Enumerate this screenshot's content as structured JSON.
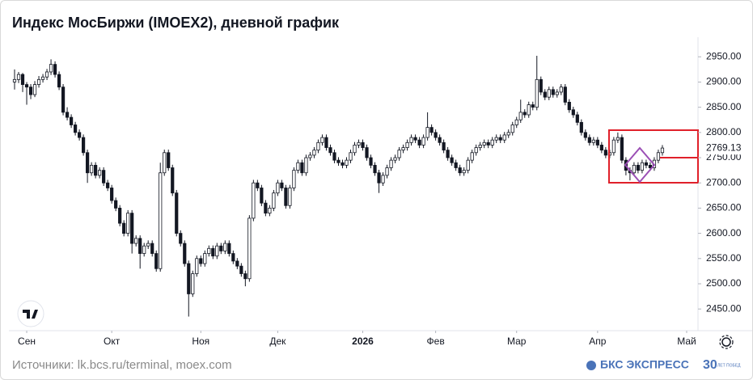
{
  "chart_data": {
    "type": "candlestick",
    "title": "Индекс МосБиржи (IMOEX2), дневной график",
    "up_color": "#ffffff",
    "down_color": "#131722",
    "outline_color": "#131722",
    "ylim": [
      2407,
      3045
    ],
    "yticks": [
      {
        "value": 2450,
        "label": "2450.00"
      },
      {
        "value": 2500,
        "label": "2500.00"
      },
      {
        "value": 2550,
        "label": "2550.00"
      },
      {
        "value": 2600,
        "label": "2600.00"
      },
      {
        "value": 2650,
        "label": "2650.00"
      },
      {
        "value": 2700,
        "label": "2700.00"
      },
      {
        "value": 2750,
        "label": "2750.00"
      },
      {
        "value": 2800,
        "label": "2800.00"
      },
      {
        "value": 2850,
        "label": "2850.00"
      },
      {
        "value": 2900,
        "label": "2900.00"
      },
      {
        "value": 2950,
        "label": "2950.00"
      }
    ],
    "xlim": [
      -1.4,
      168.8
    ],
    "xticks": [
      {
        "value": 3,
        "label": "Сен"
      },
      {
        "value": 24,
        "label": "Окт"
      },
      {
        "value": 46,
        "label": "Ноя"
      },
      {
        "value": 65,
        "label": "Дек"
      },
      {
        "value": 86,
        "label": "2026"
      },
      {
        "value": 104,
        "label": "Фев"
      },
      {
        "value": 124,
        "label": "Мар"
      },
      {
        "value": 144,
        "label": "Апр"
      },
      {
        "value": 166,
        "label": "Май"
      }
    ],
    "candles": [
      [
        2900,
        2925,
        2885,
        2905
      ],
      [
        2905,
        2920,
        2898,
        2915
      ],
      [
        2915,
        2918,
        2880,
        2895
      ],
      [
        2895,
        2900,
        2855,
        2890
      ],
      [
        2890,
        2896,
        2866,
        2875
      ],
      [
        2875,
        2902,
        2870,
        2895
      ],
      [
        2895,
        2912,
        2889,
        2905
      ],
      [
        2905,
        2916,
        2899,
        2910
      ],
      [
        2910,
        2926,
        2904,
        2920
      ],
      [
        2920,
        2945,
        2914,
        2935
      ],
      [
        2935,
        2941,
        2909,
        2915
      ],
      [
        2915,
        2921,
        2884,
        2890
      ],
      [
        2890,
        2896,
        2834,
        2840
      ],
      [
        2840,
        2850,
        2824,
        2830
      ],
      [
        2830,
        2836,
        2809,
        2815
      ],
      [
        2815,
        2821,
        2794,
        2800
      ],
      [
        2800,
        2806,
        2784,
        2790
      ],
      [
        2790,
        2796,
        2754,
        2760
      ],
      [
        2760,
        2766,
        2700,
        2720
      ],
      [
        2720,
        2741,
        2714,
        2735
      ],
      [
        2735,
        2741,
        2709,
        2715
      ],
      [
        2715,
        2731,
        2709,
        2725
      ],
      [
        2725,
        2731,
        2694,
        2700
      ],
      [
        2700,
        2706,
        2684,
        2690
      ],
      [
        2690,
        2696,
        2659,
        2665
      ],
      [
        2665,
        2671,
        2644,
        2650
      ],
      [
        2650,
        2656,
        2614,
        2620
      ],
      [
        2620,
        2626,
        2594,
        2600
      ],
      [
        2600,
        2646,
        2594,
        2640
      ],
      [
        2640,
        2646,
        2560,
        2580
      ],
      [
        2580,
        2596,
        2574,
        2590
      ],
      [
        2590,
        2596,
        2530,
        2560
      ],
      [
        2560,
        2581,
        2554,
        2575
      ],
      [
        2575,
        2586,
        2569,
        2580
      ],
      [
        2580,
        2586,
        2554,
        2560
      ],
      [
        2560,
        2566,
        2524,
        2530
      ],
      [
        2530,
        2740,
        2524,
        2720
      ],
      [
        2720,
        2766,
        2714,
        2760
      ],
      [
        2760,
        2766,
        2724,
        2730
      ],
      [
        2730,
        2736,
        2674,
        2680
      ],
      [
        2680,
        2686,
        2594,
        2600
      ],
      [
        2600,
        2606,
        2574,
        2580
      ],
      [
        2580,
        2586,
        2534,
        2540
      ],
      [
        2540,
        2546,
        2435,
        2480
      ],
      [
        2480,
        2526,
        2474,
        2520
      ],
      [
        2520,
        2556,
        2514,
        2550
      ],
      [
        2550,
        2556,
        2534,
        2540
      ],
      [
        2540,
        2566,
        2534,
        2560
      ],
      [
        2560,
        2576,
        2554,
        2570
      ],
      [
        2570,
        2576,
        2549,
        2555
      ],
      [
        2555,
        2581,
        2549,
        2575
      ],
      [
        2575,
        2581,
        2559,
        2565
      ],
      [
        2565,
        2586,
        2559,
        2580
      ],
      [
        2580,
        2586,
        2554,
        2560
      ],
      [
        2560,
        2566,
        2539,
        2545
      ],
      [
        2545,
        2551,
        2529,
        2535
      ],
      [
        2535,
        2541,
        2514,
        2520
      ],
      [
        2520,
        2526,
        2495,
        2510
      ],
      [
        2510,
        2636,
        2504,
        2630
      ],
      [
        2630,
        2706,
        2624,
        2700
      ],
      [
        2700,
        2706,
        2684,
        2690
      ],
      [
        2690,
        2696,
        2654,
        2660
      ],
      [
        2660,
        2666,
        2634,
        2640
      ],
      [
        2640,
        2656,
        2634,
        2650
      ],
      [
        2650,
        2686,
        2644,
        2680
      ],
      [
        2680,
        2706,
        2674,
        2700
      ],
      [
        2700,
        2706,
        2684,
        2690
      ],
      [
        2690,
        2696,
        2649,
        2655
      ],
      [
        2655,
        2696,
        2649,
        2690
      ],
      [
        2690,
        2731,
        2684,
        2725
      ],
      [
        2725,
        2746,
        2719,
        2740
      ],
      [
        2740,
        2746,
        2714,
        2720
      ],
      [
        2720,
        2756,
        2714,
        2750
      ],
      [
        2750,
        2761,
        2744,
        2755
      ],
      [
        2755,
        2771,
        2749,
        2765
      ],
      [
        2765,
        2786,
        2759,
        2780
      ],
      [
        2780,
        2796,
        2774,
        2790
      ],
      [
        2790,
        2796,
        2764,
        2770
      ],
      [
        2770,
        2776,
        2754,
        2760
      ],
      [
        2760,
        2766,
        2739,
        2745
      ],
      [
        2745,
        2751,
        2734,
        2740
      ],
      [
        2740,
        2746,
        2729,
        2735
      ],
      [
        2735,
        2751,
        2729,
        2745
      ],
      [
        2745,
        2766,
        2739,
        2760
      ],
      [
        2760,
        2781,
        2754,
        2775
      ],
      [
        2775,
        2786,
        2769,
        2780
      ],
      [
        2780,
        2786,
        2764,
        2770
      ],
      [
        2770,
        2776,
        2744,
        2750
      ],
      [
        2750,
        2756,
        2729,
        2735
      ],
      [
        2735,
        2741,
        2714,
        2720
      ],
      [
        2720,
        2726,
        2680,
        2700
      ],
      [
        2700,
        2721,
        2694,
        2715
      ],
      [
        2715,
        2736,
        2709,
        2730
      ],
      [
        2730,
        2751,
        2724,
        2745
      ],
      [
        2745,
        2756,
        2739,
        2750
      ],
      [
        2750,
        2771,
        2744,
        2765
      ],
      [
        2765,
        2776,
        2759,
        2770
      ],
      [
        2770,
        2786,
        2764,
        2780
      ],
      [
        2780,
        2796,
        2774,
        2790
      ],
      [
        2790,
        2796,
        2779,
        2785
      ],
      [
        2785,
        2791,
        2769,
        2775
      ],
      [
        2775,
        2796,
        2769,
        2790
      ],
      [
        2790,
        2840,
        2784,
        2810
      ],
      [
        2810,
        2816,
        2794,
        2800
      ],
      [
        2800,
        2806,
        2784,
        2790
      ],
      [
        2790,
        2796,
        2774,
        2780
      ],
      [
        2780,
        2786,
        2759,
        2765
      ],
      [
        2765,
        2771,
        2744,
        2750
      ],
      [
        2750,
        2756,
        2734,
        2740
      ],
      [
        2740,
        2746,
        2724,
        2730
      ],
      [
        2730,
        2736,
        2714,
        2720
      ],
      [
        2720,
        2731,
        2714,
        2725
      ],
      [
        2725,
        2751,
        2719,
        2745
      ],
      [
        2745,
        2766,
        2739,
        2760
      ],
      [
        2760,
        2776,
        2754,
        2770
      ],
      [
        2770,
        2781,
        2764,
        2775
      ],
      [
        2775,
        2786,
        2769,
        2780
      ],
      [
        2780,
        2786,
        2769,
        2775
      ],
      [
        2775,
        2791,
        2769,
        2785
      ],
      [
        2785,
        2796,
        2779,
        2790
      ],
      [
        2790,
        2796,
        2779,
        2785
      ],
      [
        2785,
        2801,
        2779,
        2795
      ],
      [
        2795,
        2806,
        2789,
        2800
      ],
      [
        2800,
        2821,
        2794,
        2815
      ],
      [
        2815,
        2831,
        2809,
        2825
      ],
      [
        2825,
        2865,
        2819,
        2840
      ],
      [
        2840,
        2846,
        2829,
        2835
      ],
      [
        2835,
        2861,
        2829,
        2855
      ],
      [
        2855,
        2861,
        2844,
        2850
      ],
      [
        2850,
        2952,
        2844,
        2905
      ],
      [
        2905,
        2911,
        2874,
        2880
      ],
      [
        2880,
        2886,
        2864,
        2870
      ],
      [
        2870,
        2891,
        2864,
        2885
      ],
      [
        2885,
        2891,
        2869,
        2875
      ],
      [
        2875,
        2886,
        2869,
        2880
      ],
      [
        2880,
        2896,
        2874,
        2890
      ],
      [
        2890,
        2896,
        2854,
        2860
      ],
      [
        2860,
        2866,
        2839,
        2845
      ],
      [
        2845,
        2851,
        2829,
        2835
      ],
      [
        2835,
        2841,
        2814,
        2820
      ],
      [
        2820,
        2826,
        2794,
        2800
      ],
      [
        2800,
        2806,
        2784,
        2790
      ],
      [
        2790,
        2796,
        2774,
        2780
      ],
      [
        2780,
        2791,
        2774,
        2785
      ],
      [
        2785,
        2791,
        2769,
        2775
      ],
      [
        2775,
        2781,
        2759,
        2765
      ],
      [
        2765,
        2771,
        2749,
        2755
      ],
      [
        2755,
        2766,
        2749,
        2760
      ],
      [
        2760,
        2791,
        2754,
        2785
      ],
      [
        2785,
        2800,
        2779,
        2790
      ],
      [
        2790,
        2796,
        2739,
        2745
      ],
      [
        2745,
        2751,
        2715,
        2725
      ],
      [
        2725,
        2731,
        2705,
        2720
      ],
      [
        2720,
        2741,
        2714,
        2735
      ],
      [
        2735,
        2741,
        2719,
        2725
      ],
      [
        2725,
        2746,
        2719,
        2740
      ],
      [
        2740,
        2746,
        2729,
        2735
      ],
      [
        2735,
        2741,
        2724,
        2730
      ],
      [
        2730,
        2751,
        2724,
        2745
      ],
      [
        2745,
        2766,
        2739,
        2760
      ],
      [
        2760,
        2775,
        2754,
        2769.13
      ]
    ],
    "source": "Источники: lk.bcs.ru/terminal, moex.com",
    "brand": "БКС ЭКСПРЕСС",
    "badge_number": "30",
    "badge_text": "ЛЕТ ПОБЕД"
  }
}
